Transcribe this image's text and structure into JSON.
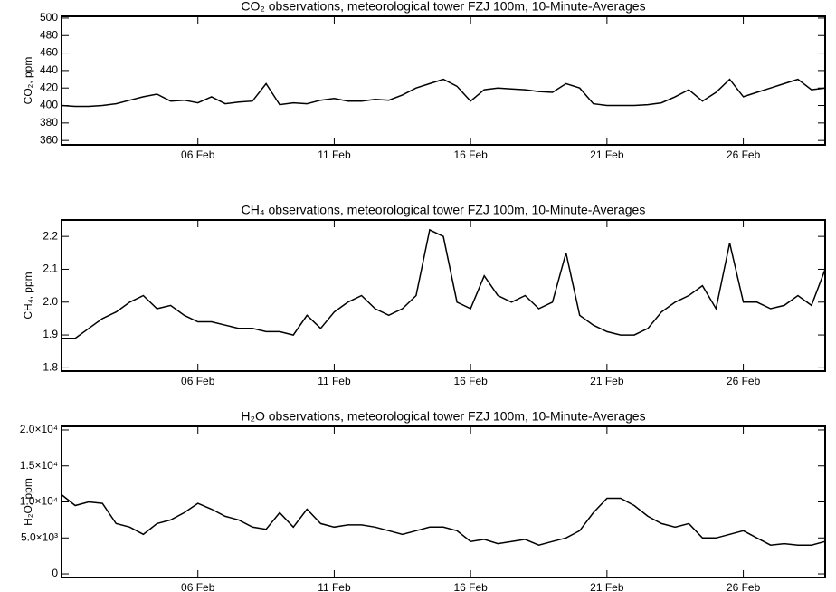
{
  "chart_data": [
    {
      "type": "line",
      "title": "CO₂ observations, meteorological tower FZJ 100m, 10-Minute-Averages",
      "ylabel": "CO₂, ppm",
      "color": "#000000",
      "x": [
        1,
        1.5,
        2,
        2.5,
        3,
        3.5,
        4,
        4.5,
        5,
        5.5,
        6,
        6.5,
        7,
        7.5,
        8,
        8.5,
        9,
        9.5,
        10,
        10.5,
        11,
        11.5,
        12,
        12.5,
        13,
        13.5,
        14,
        14.5,
        15,
        15.5,
        16,
        16.5,
        17,
        17.5,
        18,
        18.5,
        19,
        19.5,
        20,
        20.5,
        21,
        21.5,
        22,
        22.5,
        23,
        23.5,
        24,
        24.5,
        25,
        25.5,
        26,
        26.5,
        27,
        27.5,
        28,
        28.5,
        29
      ],
      "values": [
        400,
        399,
        399,
        400,
        402,
        406,
        410,
        413,
        405,
        406,
        403,
        410,
        402,
        404,
        405,
        425,
        401,
        403,
        402,
        406,
        408,
        405,
        405,
        407,
        406,
        412,
        420,
        425,
        430,
        422,
        405,
        418,
        420,
        419,
        418,
        416,
        415,
        425,
        420,
        402,
        400,
        400,
        400,
        401,
        403,
        410,
        418,
        405,
        415,
        430,
        410,
        415,
        420,
        425,
        430,
        418,
        420
      ],
      "xlim": [
        1,
        29
      ],
      "xticks": [
        {
          "value": 6,
          "label": "06 Feb"
        },
        {
          "value": 11,
          "label": "11 Feb"
        },
        {
          "value": 16,
          "label": "16 Feb"
        },
        {
          "value": 21,
          "label": "21 Feb"
        },
        {
          "value": 26,
          "label": "26 Feb"
        }
      ],
      "ylim": [
        355,
        502
      ],
      "yticks": [
        360,
        380,
        400,
        420,
        440,
        460,
        480,
        500
      ]
    },
    {
      "type": "line",
      "title": "CH₄ observations, meteorological tower FZJ 100m, 10-Minute-Averages",
      "ylabel": "CH₄, ppm",
      "color": "#000000",
      "x": [
        1,
        1.5,
        2,
        2.5,
        3,
        3.5,
        4,
        4.5,
        5,
        5.5,
        6,
        6.5,
        7,
        7.5,
        8,
        8.5,
        9,
        9.5,
        10,
        10.5,
        11,
        11.5,
        12,
        12.5,
        13,
        13.5,
        14,
        14.5,
        15,
        15.5,
        16,
        16.5,
        17,
        17.5,
        18,
        18.5,
        19,
        19.5,
        20,
        20.5,
        21,
        21.5,
        22,
        22.5,
        23,
        23.5,
        24,
        24.5,
        25,
        25.5,
        26,
        26.5,
        27,
        27.5,
        28,
        28.5,
        29
      ],
      "values": [
        1.89,
        1.89,
        1.92,
        1.95,
        1.97,
        2.0,
        2.02,
        1.98,
        1.99,
        1.96,
        1.94,
        1.94,
        1.93,
        1.92,
        1.92,
        1.91,
        1.91,
        1.9,
        1.96,
        1.92,
        1.97,
        2.0,
        2.02,
        1.98,
        1.96,
        1.98,
        2.02,
        2.22,
        2.2,
        2.0,
        1.98,
        2.08,
        2.02,
        2.0,
        2.02,
        1.98,
        2.0,
        2.15,
        1.96,
        1.93,
        1.91,
        1.9,
        1.9,
        1.92,
        1.97,
        2.0,
        2.02,
        2.05,
        1.98,
        2.18,
        2.0,
        2.0,
        1.98,
        1.99,
        2.02,
        1.99,
        2.1
      ],
      "xlim": [
        1,
        29
      ],
      "xticks": [
        {
          "value": 6,
          "label": "06 Feb"
        },
        {
          "value": 11,
          "label": "11 Feb"
        },
        {
          "value": 16,
          "label": "16 Feb"
        },
        {
          "value": 21,
          "label": "21 Feb"
        },
        {
          "value": 26,
          "label": "26 Feb"
        }
      ],
      "ylim": [
        1.79,
        2.25
      ],
      "yticks": [
        1.8,
        1.9,
        {
          "value": 2,
          "label": "2.0"
        },
        2.1,
        2.2
      ]
    },
    {
      "type": "line",
      "title": "H₂O observations, meteorological tower FZJ 100m, 10-Minute-Averages",
      "ylabel": "H₂O, ppm",
      "color": "#000000",
      "x": [
        1,
        1.5,
        2,
        2.5,
        3,
        3.5,
        4,
        4.5,
        5,
        5.5,
        6,
        6.5,
        7,
        7.5,
        8,
        8.5,
        9,
        9.5,
        10,
        10.5,
        11,
        11.5,
        12,
        12.5,
        13,
        13.5,
        14,
        14.5,
        15,
        15.5,
        16,
        16.5,
        17,
        17.5,
        18,
        18.5,
        19,
        19.5,
        20,
        20.5,
        21,
        21.5,
        22,
        22.5,
        23,
        23.5,
        24,
        24.5,
        25,
        25.5,
        26,
        26.5,
        27,
        27.5,
        28,
        28.5,
        29
      ],
      "values": [
        11000,
        9500,
        10000,
        9800,
        7000,
        6500,
        5500,
        7000,
        7500,
        8500,
        9800,
        9000,
        8000,
        7500,
        6500,
        6200,
        8500,
        6500,
        9000,
        7000,
        6500,
        6800,
        6800,
        6500,
        6000,
        5500,
        6000,
        6500,
        6500,
        6000,
        4500,
        4800,
        4200,
        4500,
        4800,
        4000,
        4500,
        5000,
        6000,
        8500,
        10500,
        10500,
        9500,
        8000,
        7000,
        6500,
        7000,
        5000,
        5000,
        5500,
        6000,
        5000,
        4000,
        4200,
        4000,
        4000,
        4500
      ],
      "xlim": [
        1,
        29
      ],
      "xticks": [
        {
          "value": 6,
          "label": "06 Feb"
        },
        {
          "value": 11,
          "label": "11 Feb"
        },
        {
          "value": 16,
          "label": "16 Feb"
        },
        {
          "value": 21,
          "label": "21 Feb"
        },
        {
          "value": 26,
          "label": "26 Feb"
        }
      ],
      "ylim": [
        -500,
        20500
      ],
      "yticks": [
        0,
        {
          "value": 5000,
          "label": "5.0×10³"
        },
        {
          "value": 10000,
          "label": "1.0×10⁴"
        },
        {
          "value": 15000,
          "label": "1.5×10⁴"
        },
        {
          "value": 20000,
          "label": "2.0×10⁴"
        }
      ]
    }
  ]
}
